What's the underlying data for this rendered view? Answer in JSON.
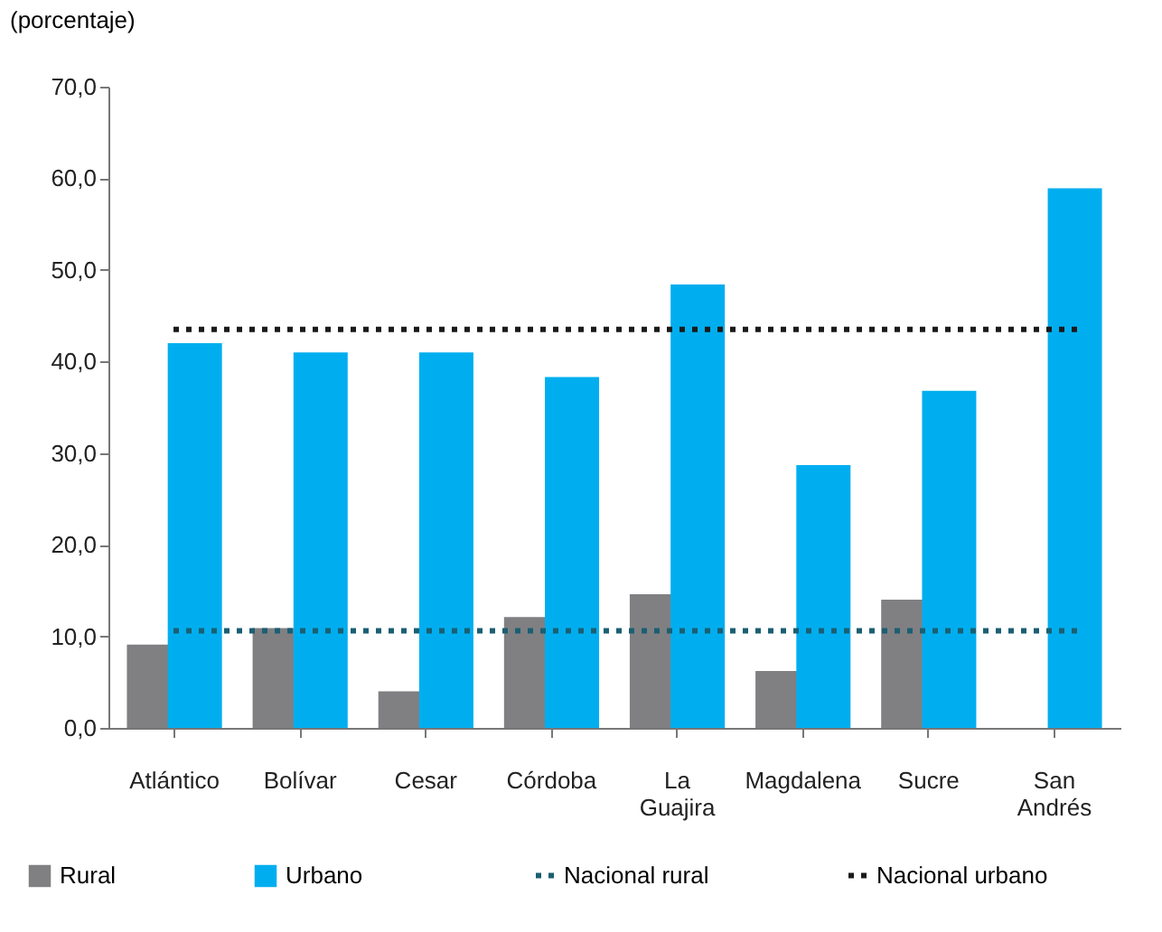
{
  "chart_data": {
    "type": "bar",
    "ylabel": "(porcentaje)",
    "categories": [
      "Atlántico",
      "Bolívar",
      "Cesar",
      "Córdoba",
      "La Guajira",
      "Magdalena",
      "Sucre",
      "San Andrés"
    ],
    "series": [
      {
        "name": "Rural",
        "color": "#808083",
        "values": [
          9.1,
          10.9,
          4.0,
          12.1,
          14.6,
          6.2,
          14.0,
          null
        ]
      },
      {
        "name": "Urbano",
        "color": "#00aeef",
        "values": [
          42.0,
          41.0,
          41.0,
          38.3,
          48.4,
          28.7,
          36.8,
          58.9
        ]
      }
    ],
    "ref_lines": [
      {
        "axis": "y",
        "value": 10.6,
        "label": "Nacional rural",
        "color": "#1b5f72",
        "line_style": "dotted"
      },
      {
        "axis": "y",
        "value": 43.5,
        "label": "Nacional urbano",
        "color": "#1a1a1a",
        "line_style": "dotted"
      }
    ],
    "ylim": [
      0,
      70
    ],
    "yticks": [
      {
        "value": 0,
        "label": "0,0"
      },
      {
        "value": 10,
        "label": "10,0"
      },
      {
        "value": 20,
        "label": "20,0"
      },
      {
        "value": 30,
        "label": "30,0"
      },
      {
        "value": 40,
        "label": "40,0"
      },
      {
        "value": 50,
        "label": "50,0"
      },
      {
        "value": 60,
        "label": "60,0"
      },
      {
        "value": 70,
        "label": "70,0"
      }
    ],
    "grid": false,
    "legend": "bottom"
  }
}
